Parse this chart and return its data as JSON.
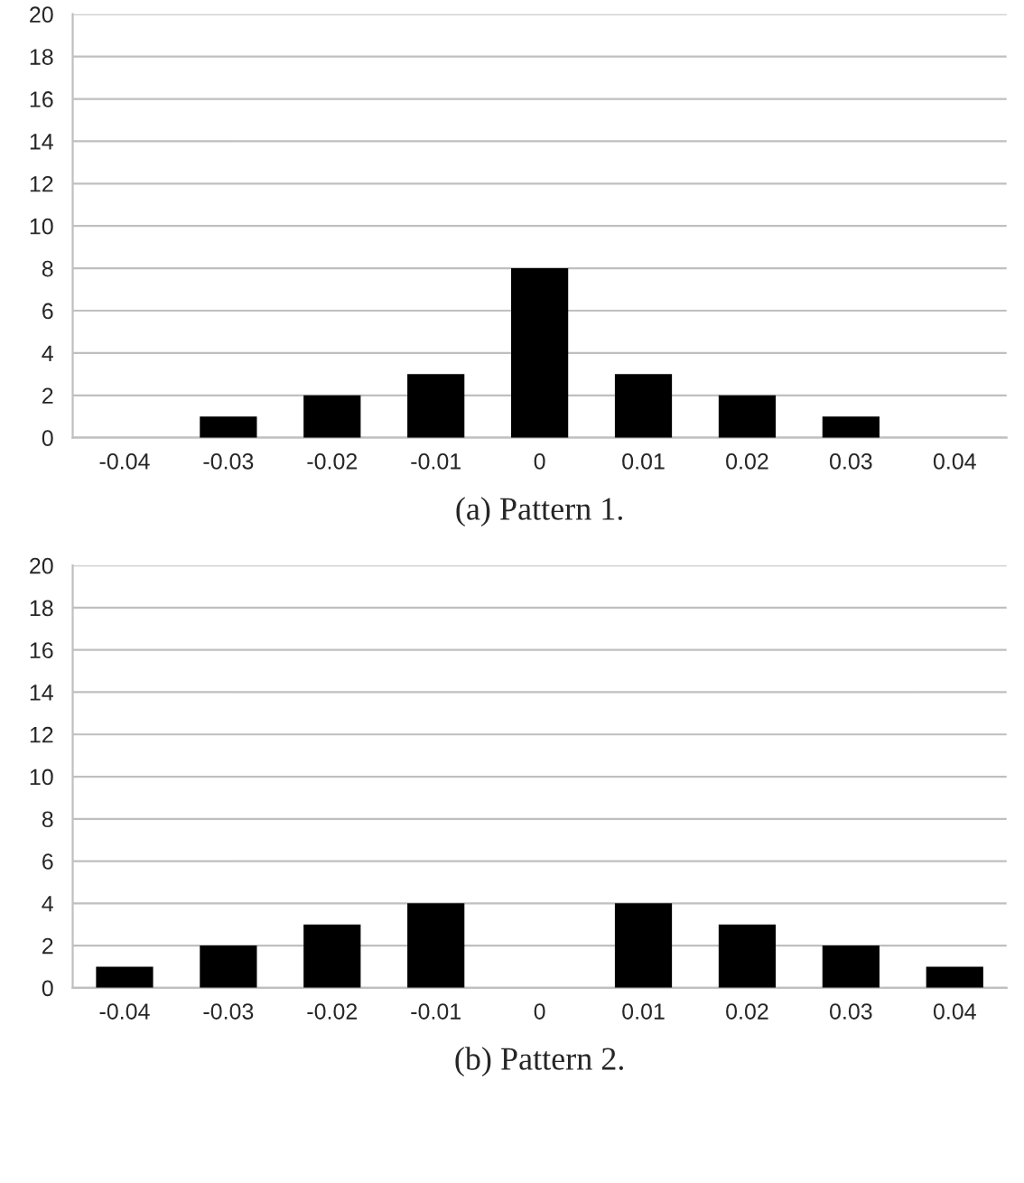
{
  "chart_data": [
    {
      "type": "bar",
      "title": "(a) Pattern 1.",
      "categories": [
        "-0.04",
        "-0.03",
        "-0.02",
        "-0.01",
        "0",
        "0.01",
        "0.02",
        "0.03",
        "0.04"
      ],
      "values": [
        0,
        1,
        2,
        3,
        8,
        3,
        2,
        1,
        0
      ],
      "color": "#000000",
      "ylim": [
        0,
        20
      ],
      "yticks": [
        0,
        2,
        4,
        6,
        8,
        10,
        12,
        14,
        16,
        18,
        20
      ],
      "grid": "y",
      "legend": false
    },
    {
      "type": "bar",
      "title": "(b) Pattern 2.",
      "categories": [
        "-0.04",
        "-0.03",
        "-0.02",
        "-0.01",
        "0",
        "0.01",
        "0.02",
        "0.03",
        "0.04"
      ],
      "values": [
        1,
        2,
        3,
        4,
        0,
        4,
        3,
        2,
        1
      ],
      "color": "#000000",
      "ylim": [
        0,
        20
      ],
      "yticks": [
        0,
        2,
        4,
        6,
        8,
        10,
        12,
        14,
        16,
        18,
        20
      ],
      "grid": "y",
      "legend": false
    }
  ]
}
